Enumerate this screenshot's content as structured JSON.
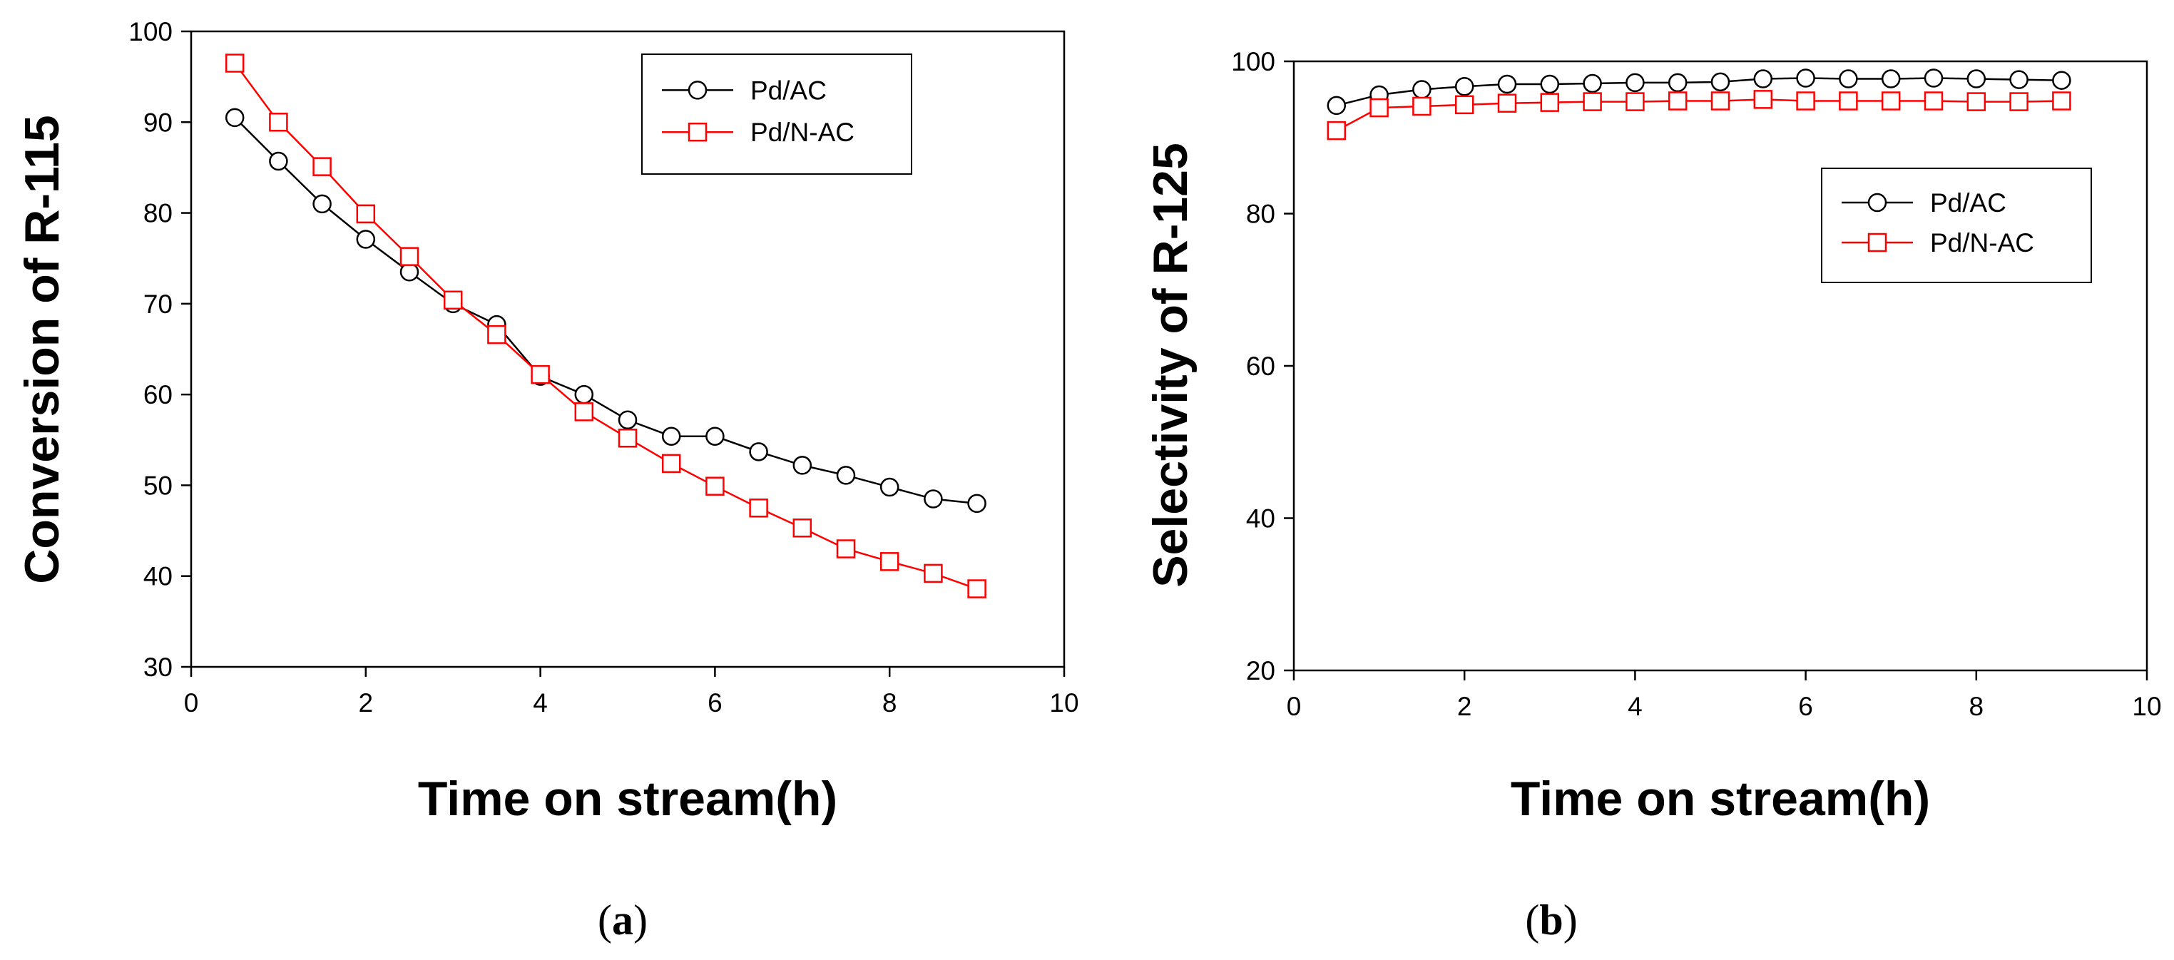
{
  "figure": {
    "panels": [
      {
        "label_open": "(",
        "label_letter": "a",
        "label_close": ")"
      },
      {
        "label_open": "(",
        "label_letter": "b",
        "label_close": ")"
      }
    ]
  },
  "chart_data": [
    {
      "type": "line",
      "title": "",
      "xlabel": "Time on stream(h)",
      "ylabel": "Conversion of R-115",
      "xlim": [
        0,
        10
      ],
      "ylim": [
        30,
        100
      ],
      "xticks": [
        0,
        2,
        4,
        6,
        8,
        10
      ],
      "yticks": [
        30,
        40,
        50,
        60,
        70,
        80,
        90,
        100
      ],
      "legend_position": "top-right",
      "x": [
        0.5,
        1.0,
        1.5,
        2.0,
        2.5,
        3.0,
        3.5,
        4.0,
        4.5,
        5.0,
        5.5,
        6.0,
        6.5,
        7.0,
        7.5,
        8.0,
        8.5,
        9.0
      ],
      "series": [
        {
          "name": "Pd/AC",
          "color": "#000000",
          "marker": "circle",
          "values": [
            90.5,
            85.7,
            81.0,
            77.1,
            73.5,
            70.0,
            67.7,
            62.0,
            60.0,
            57.2,
            55.4,
            55.4,
            53.7,
            52.2,
            51.1,
            49.8,
            48.5,
            48.0
          ]
        },
        {
          "name": "Pd/N-AC",
          "color": "#ff0000",
          "marker": "square",
          "values": [
            96.5,
            90.0,
            85.1,
            79.9,
            75.2,
            70.4,
            66.6,
            62.2,
            58.1,
            55.2,
            52.4,
            49.9,
            47.5,
            45.3,
            43.0,
            41.6,
            40.3,
            38.6
          ]
        }
      ]
    },
    {
      "type": "line",
      "title": "",
      "xlabel": "Time on stream(h)",
      "ylabel": "Selectivity of R-125",
      "xlim": [
        0,
        10
      ],
      "ylim": [
        20,
        100
      ],
      "xticks": [
        0,
        2,
        4,
        6,
        8,
        10
      ],
      "yticks": [
        20,
        40,
        60,
        80,
        100
      ],
      "legend_position": "upper-right",
      "x": [
        0.5,
        1.0,
        1.5,
        2.0,
        2.5,
        3.0,
        3.5,
        4.0,
        4.5,
        5.0,
        5.5,
        6.0,
        6.5,
        7.0,
        7.5,
        8.0,
        8.5,
        9.0
      ],
      "series": [
        {
          "name": "Pd/AC",
          "color": "#000000",
          "marker": "circle",
          "values": [
            94.2,
            95.6,
            96.3,
            96.7,
            97.0,
            97.0,
            97.1,
            97.2,
            97.2,
            97.3,
            97.7,
            97.8,
            97.7,
            97.7,
            97.8,
            97.7,
            97.6,
            97.5
          ]
        },
        {
          "name": "Pd/N-AC",
          "color": "#ff0000",
          "marker": "square",
          "values": [
            90.9,
            93.9,
            94.1,
            94.3,
            94.5,
            94.6,
            94.7,
            94.7,
            94.8,
            94.8,
            95.0,
            94.8,
            94.8,
            94.8,
            94.8,
            94.7,
            94.7,
            94.8
          ]
        }
      ]
    }
  ]
}
